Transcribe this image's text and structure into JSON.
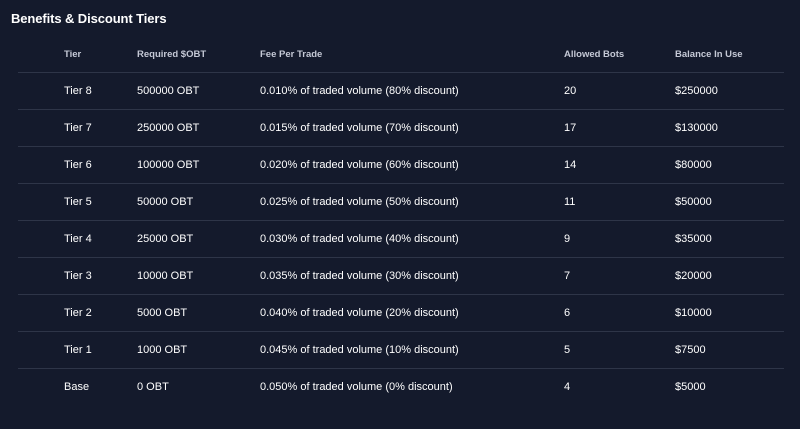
{
  "page": {
    "title": "Benefits & Discount Tiers"
  },
  "table": {
    "headers": {
      "tier": "Tier",
      "required": "Required $OBT",
      "fee": "Fee Per Trade",
      "bots": "Allowed Bots",
      "balance": "Balance In Use"
    },
    "rows": [
      {
        "tier": "Tier 8",
        "required": "500000 OBT",
        "fee": "0.010% of traded volume (80% discount)",
        "bots": "20",
        "balance": "$250000"
      },
      {
        "tier": "Tier 7",
        "required": "250000 OBT",
        "fee": "0.015% of traded volume (70% discount)",
        "bots": "17",
        "balance": "$130000"
      },
      {
        "tier": "Tier 6",
        "required": "100000 OBT",
        "fee": "0.020% of traded volume (60% discount)",
        "bots": "14",
        "balance": "$80000"
      },
      {
        "tier": "Tier 5",
        "required": "50000 OBT",
        "fee": "0.025% of traded volume (50% discount)",
        "bots": "11",
        "balance": "$50000"
      },
      {
        "tier": "Tier 4",
        "required": "25000 OBT",
        "fee": "0.030% of traded volume (40% discount)",
        "bots": "9",
        "balance": "$35000"
      },
      {
        "tier": "Tier 3",
        "required": "10000 OBT",
        "fee": "0.035% of traded volume (30% discount)",
        "bots": "7",
        "balance": "$20000"
      },
      {
        "tier": "Tier 2",
        "required": "5000 OBT",
        "fee": "0.040% of traded volume (20% discount)",
        "bots": "6",
        "balance": "$10000"
      },
      {
        "tier": "Tier 1",
        "required": "1000 OBT",
        "fee": "0.045% of traded volume (10% discount)",
        "bots": "5",
        "balance": "$7500"
      },
      {
        "tier": "Base",
        "required": "0 OBT",
        "fee": "0.050% of traded volume (0% discount)",
        "bots": "4",
        "balance": "$5000"
      }
    ]
  },
  "colors": {
    "background": "#141a2c",
    "divider": "#2e3548",
    "header_text": "#c5c9d6",
    "cell_text": "#ffffff"
  }
}
